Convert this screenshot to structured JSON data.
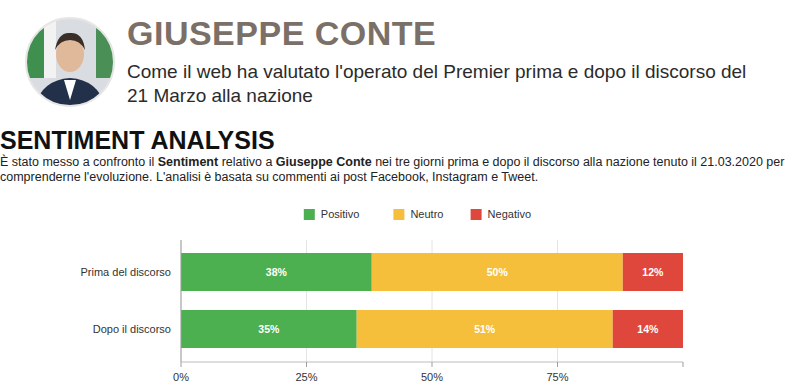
{
  "header": {
    "title": "GIUSEPPE CONTE",
    "subtitle": "Come il web ha valutato l'operato del Premier prima e dopo il discorso del 21 Marzo alla nazione",
    "section_title": "SENTIMENT ANALYSIS",
    "description": [
      "È stato messo a confronto il ",
      "Sentiment",
      " relativo a ",
      "Giuseppe Conte",
      " nei tre giorni prima e dopo il discorso alla nazione tenuto il 21.03.2020 per comprenderne l'evoluzione. L'analisi è basata su commenti ai post Facebook, Instagram e Tweet."
    ]
  },
  "chart_data": {
    "type": "bar",
    "orientation": "horizontal",
    "stacked": true,
    "data_labels": true,
    "legend": "top",
    "grid": true,
    "categories": [
      "Prima del discorso",
      "Dopo il discorso"
    ],
    "series": [
      {
        "name": "Positivo",
        "color": "#4caf50",
        "values": [
          38,
          35
        ],
        "value_labels": [
          "38%",
          "35%"
        ]
      },
      {
        "name": "Neutro",
        "color": "#f6bf3b",
        "values": [
          50,
          51
        ],
        "value_labels": [
          "50%",
          "51%"
        ]
      },
      {
        "name": "Negativo",
        "color": "#e0473c",
        "values": [
          12,
          14
        ],
        "value_labels": [
          "12%",
          "14%"
        ]
      }
    ],
    "xlim": [
      0,
      100
    ],
    "xticks": [
      {
        "value": 0,
        "label": "0%"
      },
      {
        "value": 25,
        "label": "25%"
      },
      {
        "value": 50,
        "label": "50%"
      },
      {
        "value": 75,
        "label": "75%"
      }
    ]
  }
}
